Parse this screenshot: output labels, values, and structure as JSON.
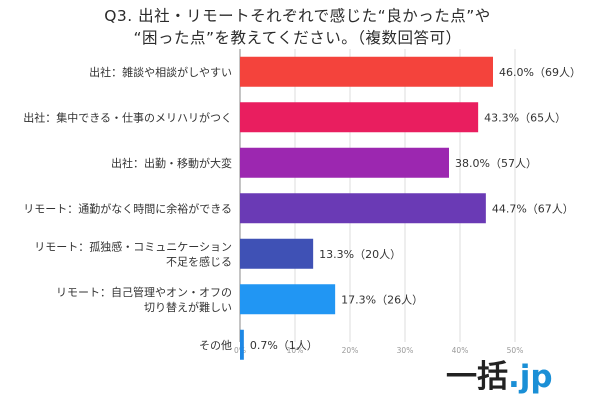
{
  "title_lines": [
    "Q3. 出社・リモートそれぞれで感じた“良かった点”や",
    "“困った点”を教えてください。（複数回答可）"
  ],
  "chart_data": {
    "type": "bar",
    "orientation": "horizontal",
    "categories": [
      [
        "出社：雑談や相談がしやすい"
      ],
      [
        "出社：集中できる・仕事のメリハリがつく"
      ],
      [
        "出社：出勤・移動が大変"
      ],
      [
        "リモート：通勤がなく時間に余裕ができる"
      ],
      [
        "リモート：孤独感・コミュニケーション",
        "不足を感じる"
      ],
      [
        "リモート：自己管理やオン・オフの",
        "切り替えが難しい"
      ],
      [
        "その他"
      ]
    ],
    "values": [
      46.0,
      43.3,
      38.0,
      44.7,
      13.3,
      17.3,
      0.7
    ],
    "data_labels": [
      "46.0%（69人）",
      "43.3%（65人）",
      "38.0%（57人）",
      "44.7%（67人）",
      "13.3%（20人）",
      "17.3%（26人）",
      "0.7%（1人）"
    ],
    "colors": [
      "#f4433c",
      "#e91e5f",
      "#9c27b0",
      "#6a3ab5",
      "#3f51b5",
      "#2196f3",
      "#1e88e5"
    ],
    "x_ticks": [
      0,
      10,
      20,
      30,
      40,
      50
    ],
    "x_tick_labels": [
      "0%",
      "10%",
      "20%",
      "30%",
      "40%",
      "50%"
    ],
    "xlim": [
      0,
      50
    ],
    "grid": true,
    "legend": false
  },
  "logo": {
    "main": "一括",
    "tld": ".jp"
  }
}
